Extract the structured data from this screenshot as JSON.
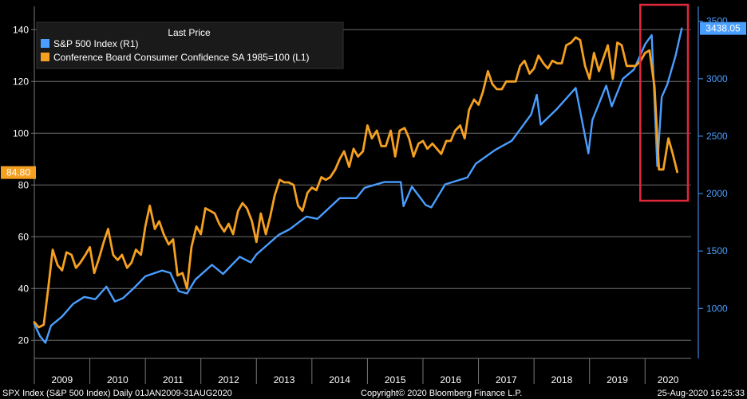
{
  "chart_data": {
    "type": "line",
    "legend": {
      "title": "Last Price",
      "placement": "top-left",
      "items": [
        {
          "label": "S&P 500 Index  (R1)",
          "color": "#4a9eff"
        },
        {
          "label": "Conference Board Consumer Confidence SA 1985=100  (L1)",
          "color": "#f5a020"
        }
      ]
    },
    "left_axis": {
      "ylim": [
        13,
        149
      ],
      "ticks": [
        20,
        40,
        60,
        80,
        100,
        120,
        140
      ],
      "color": "#ffffff"
    },
    "right_axis": {
      "ylim": [
        565,
        3630
      ],
      "ticks": [
        1000,
        1500,
        2000,
        2500,
        3000,
        3500
      ],
      "color": "#4a9eff"
    },
    "x_axis": {
      "range": [
        2009.0,
        2020.83
      ],
      "labels": [
        "2009",
        "2010",
        "2011",
        "2012",
        "2013",
        "2014",
        "2015",
        "2016",
        "2017",
        "2018",
        "2019",
        "2020"
      ]
    },
    "last_values": {
      "spx": "3438.05",
      "confidence": "84.80"
    },
    "series": [
      {
        "name": "S&P 500 Index",
        "axis": "right",
        "color": "#4a9eff",
        "points": [
          [
            2009.0,
            865
          ],
          [
            2009.1,
            760
          ],
          [
            2009.2,
            700
          ],
          [
            2009.3,
            850
          ],
          [
            2009.5,
            930
          ],
          [
            2009.7,
            1040
          ],
          [
            2009.9,
            1100
          ],
          [
            2010.1,
            1080
          ],
          [
            2010.3,
            1190
          ],
          [
            2010.45,
            1060
          ],
          [
            2010.6,
            1090
          ],
          [
            2010.8,
            1180
          ],
          [
            2011.0,
            1280
          ],
          [
            2011.3,
            1330
          ],
          [
            2011.45,
            1310
          ],
          [
            2011.6,
            1150
          ],
          [
            2011.75,
            1130
          ],
          [
            2011.9,
            1250
          ],
          [
            2012.2,
            1380
          ],
          [
            2012.4,
            1300
          ],
          [
            2012.7,
            1450
          ],
          [
            2012.9,
            1400
          ],
          [
            2013.0,
            1470
          ],
          [
            2013.4,
            1640
          ],
          [
            2013.6,
            1690
          ],
          [
            2013.9,
            1800
          ],
          [
            2014.1,
            1780
          ],
          [
            2014.5,
            1960
          ],
          [
            2014.8,
            1960
          ],
          [
            2014.95,
            2050
          ],
          [
            2015.3,
            2100
          ],
          [
            2015.6,
            2100
          ],
          [
            2015.65,
            1890
          ],
          [
            2015.8,
            2060
          ],
          [
            2016.05,
            1900
          ],
          [
            2016.15,
            1880
          ],
          [
            2016.4,
            2080
          ],
          [
            2016.8,
            2140
          ],
          [
            2016.95,
            2260
          ],
          [
            2017.3,
            2380
          ],
          [
            2017.6,
            2460
          ],
          [
            2017.95,
            2690
          ],
          [
            2018.05,
            2860
          ],
          [
            2018.12,
            2600
          ],
          [
            2018.4,
            2730
          ],
          [
            2018.75,
            2920
          ],
          [
            2018.98,
            2350
          ],
          [
            2019.05,
            2640
          ],
          [
            2019.3,
            2940
          ],
          [
            2019.4,
            2760
          ],
          [
            2019.6,
            3000
          ],
          [
            2019.8,
            3080
          ],
          [
            2020.0,
            3300
          ],
          [
            2020.12,
            3380
          ],
          [
            2020.22,
            2240
          ],
          [
            2020.3,
            2840
          ],
          [
            2020.4,
            2950
          ],
          [
            2020.55,
            3200
          ],
          [
            2020.66,
            3438
          ]
        ]
      },
      {
        "name": "Conference Board Consumer Confidence SA 1985=100",
        "axis": "left",
        "color": "#f5a020",
        "points": [
          [
            2009.0,
            27
          ],
          [
            2009.08,
            25
          ],
          [
            2009.17,
            26
          ],
          [
            2009.25,
            40
          ],
          [
            2009.33,
            55
          ],
          [
            2009.42,
            49
          ],
          [
            2009.5,
            47
          ],
          [
            2009.58,
            54
          ],
          [
            2009.67,
            53
          ],
          [
            2009.75,
            48
          ],
          [
            2009.83,
            50
          ],
          [
            2009.92,
            53
          ],
          [
            2010.0,
            56
          ],
          [
            2010.08,
            46
          ],
          [
            2010.17,
            52
          ],
          [
            2010.25,
            58
          ],
          [
            2010.33,
            63
          ],
          [
            2010.42,
            53
          ],
          [
            2010.5,
            51
          ],
          [
            2010.58,
            53
          ],
          [
            2010.67,
            48
          ],
          [
            2010.75,
            50
          ],
          [
            2010.83,
            55
          ],
          [
            2010.92,
            53
          ],
          [
            2011.0,
            64
          ],
          [
            2011.08,
            72
          ],
          [
            2011.17,
            63
          ],
          [
            2011.25,
            66
          ],
          [
            2011.33,
            61
          ],
          [
            2011.42,
            57
          ],
          [
            2011.5,
            59
          ],
          [
            2011.58,
            45
          ],
          [
            2011.67,
            46
          ],
          [
            2011.75,
            40
          ],
          [
            2011.83,
            56
          ],
          [
            2011.92,
            64
          ],
          [
            2012.0,
            61
          ],
          [
            2012.08,
            71
          ],
          [
            2012.17,
            70
          ],
          [
            2012.25,
            69
          ],
          [
            2012.33,
            65
          ],
          [
            2012.42,
            62
          ],
          [
            2012.5,
            65
          ],
          [
            2012.58,
            61
          ],
          [
            2012.67,
            70
          ],
          [
            2012.75,
            73
          ],
          [
            2012.83,
            71
          ],
          [
            2012.92,
            66
          ],
          [
            2013.0,
            58
          ],
          [
            2013.08,
            69
          ],
          [
            2013.17,
            61
          ],
          [
            2013.25,
            68
          ],
          [
            2013.33,
            76
          ],
          [
            2013.42,
            82
          ],
          [
            2013.5,
            81
          ],
          [
            2013.58,
            81
          ],
          [
            2013.67,
            80
          ],
          [
            2013.75,
            72
          ],
          [
            2013.83,
            70
          ],
          [
            2013.92,
            77
          ],
          [
            2014.0,
            79
          ],
          [
            2014.08,
            78
          ],
          [
            2014.17,
            83
          ],
          [
            2014.25,
            82
          ],
          [
            2014.33,
            83
          ],
          [
            2014.42,
            86
          ],
          [
            2014.5,
            90
          ],
          [
            2014.58,
            93
          ],
          [
            2014.67,
            87
          ],
          [
            2014.75,
            94
          ],
          [
            2014.83,
            91
          ],
          [
            2014.92,
            93
          ],
          [
            2015.0,
            103
          ],
          [
            2015.08,
            98
          ],
          [
            2015.17,
            101
          ],
          [
            2015.25,
            95
          ],
          [
            2015.33,
            95
          ],
          [
            2015.42,
            101
          ],
          [
            2015.5,
            91
          ],
          [
            2015.58,
            101
          ],
          [
            2015.67,
            102
          ],
          [
            2015.75,
            98
          ],
          [
            2015.83,
            91
          ],
          [
            2015.92,
            96
          ],
          [
            2016.0,
            97
          ],
          [
            2016.08,
            94
          ],
          [
            2016.17,
            96
          ],
          [
            2016.25,
            94
          ],
          [
            2016.33,
            92
          ],
          [
            2016.42,
            97
          ],
          [
            2016.5,
            97
          ],
          [
            2016.58,
            101
          ],
          [
            2016.67,
            103
          ],
          [
            2016.75,
            98
          ],
          [
            2016.83,
            109
          ],
          [
            2016.92,
            113
          ],
          [
            2017.0,
            111
          ],
          [
            2017.08,
            116
          ],
          [
            2017.17,
            124
          ],
          [
            2017.25,
            119
          ],
          [
            2017.33,
            117
          ],
          [
            2017.42,
            117
          ],
          [
            2017.5,
            120
          ],
          [
            2017.58,
            120
          ],
          [
            2017.67,
            120
          ],
          [
            2017.75,
            126
          ],
          [
            2017.83,
            128
          ],
          [
            2017.92,
            123
          ],
          [
            2018.0,
            125
          ],
          [
            2018.08,
            130
          ],
          [
            2018.17,
            127
          ],
          [
            2018.25,
            125
          ],
          [
            2018.33,
            128
          ],
          [
            2018.42,
            127
          ],
          [
            2018.5,
            127
          ],
          [
            2018.58,
            134
          ],
          [
            2018.67,
            135
          ],
          [
            2018.75,
            137
          ],
          [
            2018.83,
            136
          ],
          [
            2018.92,
            126
          ],
          [
            2019.0,
            121
          ],
          [
            2019.08,
            131
          ],
          [
            2019.17,
            124
          ],
          [
            2019.25,
            129
          ],
          [
            2019.33,
            134
          ],
          [
            2019.42,
            121
          ],
          [
            2019.5,
            135
          ],
          [
            2019.58,
            134
          ],
          [
            2019.67,
            126
          ],
          [
            2019.75,
            126
          ],
          [
            2019.83,
            126
          ],
          [
            2019.92,
            128
          ],
          [
            2020.0,
            131
          ],
          [
            2020.08,
            132
          ],
          [
            2020.17,
            118
          ],
          [
            2020.25,
            86
          ],
          [
            2020.33,
            86
          ],
          [
            2020.42,
            98
          ],
          [
            2020.5,
            92
          ],
          [
            2020.58,
            85
          ]
        ]
      }
    ],
    "highlight": {
      "x_range": [
        2020.0,
        2020.83
      ],
      "color": "#e0283c"
    }
  },
  "footer": {
    "left": "SPX Index (S&P 500 Index)  Daily 01JAN2009-31AUG2020",
    "center": "Copyright© 2020 Bloomberg Finance L.P.",
    "right": "25-Aug-2020 16:25:33"
  }
}
